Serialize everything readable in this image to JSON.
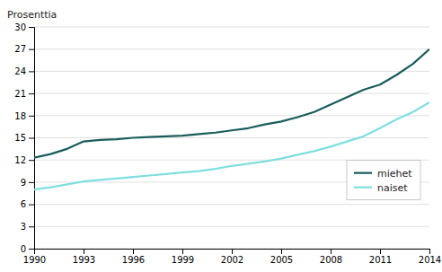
{
  "chart_data": {
    "type": "line",
    "ylabel": "Prosenttia",
    "x": [
      1990,
      1991,
      1992,
      1993,
      1994,
      1995,
      1996,
      1997,
      1998,
      1999,
      2000,
      2001,
      2002,
      2003,
      2004,
      2005,
      2006,
      2007,
      2008,
      2009,
      2010,
      2011,
      2012,
      2013,
      2014
    ],
    "series": [
      {
        "name": "miehet",
        "color": "#1a5c5c",
        "values": [
          12.3,
          12.8,
          13.5,
          14.5,
          14.7,
          14.8,
          15.0,
          15.1,
          15.2,
          15.3,
          15.5,
          15.7,
          16.0,
          16.3,
          16.8,
          17.2,
          17.8,
          18.5,
          19.5,
          20.5,
          21.5,
          22.2,
          23.5,
          25.0,
          27.0
        ]
      },
      {
        "name": "naiset",
        "color": "#7fdfdf",
        "values": [
          8.0,
          8.3,
          8.7,
          9.1,
          9.3,
          9.5,
          9.7,
          9.9,
          10.1,
          10.3,
          10.5,
          10.8,
          11.2,
          11.5,
          11.8,
          12.2,
          12.7,
          13.2,
          13.8,
          14.5,
          15.2,
          16.3,
          17.5,
          18.5,
          19.8
        ]
      }
    ],
    "xlim": [
      1990,
      2014
    ],
    "xticks": [
      1990,
      1993,
      1996,
      1999,
      2002,
      2005,
      2008,
      2011,
      2014
    ],
    "ylim": [
      0,
      30
    ],
    "yticks": [
      0,
      3,
      6,
      9,
      12,
      15,
      18,
      21,
      24,
      27,
      30
    ],
    "grid": true,
    "legend": "lower right"
  }
}
